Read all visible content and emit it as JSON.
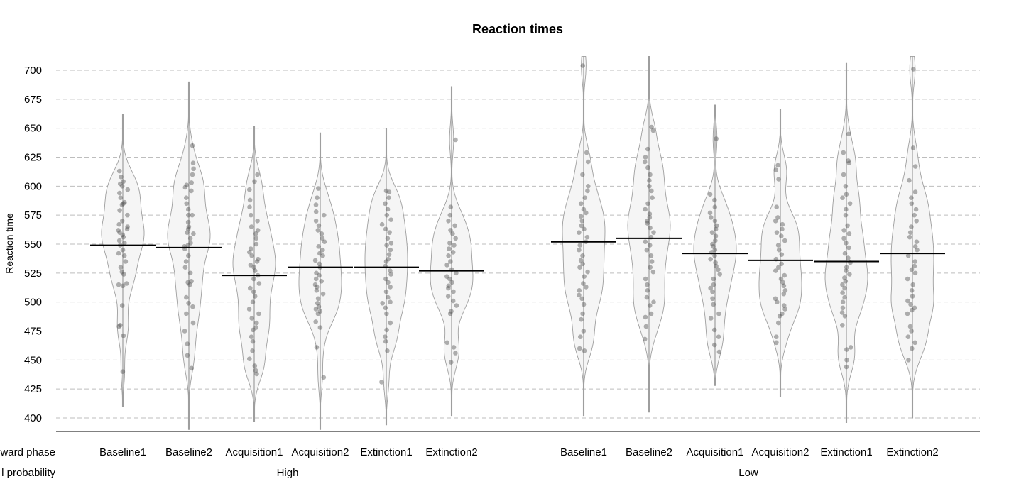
{
  "chart_data": {
    "type": "violin",
    "title": "Reaction times",
    "ylabel": "Reaction time",
    "ylim": [
      390,
      712
    ],
    "y_ticks": [
      400,
      425,
      450,
      475,
      500,
      525,
      550,
      575,
      600,
      625,
      650,
      675,
      700
    ],
    "grid": true,
    "row_labels": {
      "phase": "ward phase",
      "probability": "l probability"
    },
    "groups": [
      {
        "name": "High",
        "categories": [
          {
            "label": "Baseline1",
            "median": 549,
            "range": [
              410,
              662
            ],
            "points": [
              440,
              471,
              479,
              480,
              497,
              514,
              515,
              516,
              524,
              526,
              530,
              535,
              540,
              542,
              545,
              549,
              551,
              553,
              556,
              558,
              560,
              562,
              563,
              565,
              567,
              570,
              575,
              579,
              584,
              585,
              586,
              590,
              594,
              597,
              600,
              602,
              604,
              608,
              613
            ]
          },
          {
            "label": "Baseline2",
            "median": 547,
            "range": [
              390,
              690
            ],
            "points": [
              443,
              454,
              464,
              475,
              482,
              490,
              496,
              499,
              504,
              515,
              517,
              518,
              525,
              530,
              535,
              540,
              546,
              548,
              549,
              551,
              555,
              559,
              560,
              563,
              565,
              569,
              575,
              575,
              580,
              585,
              590,
              596,
              599,
              601,
              603,
              610,
              615,
              620,
              635
            ]
          },
          {
            "label": "Acquisition1",
            "median": 523,
            "range": [
              397,
              652
            ],
            "points": [
              438,
              441,
              445,
              451,
              458,
              466,
              470,
              476,
              478,
              482,
              486,
              490,
              494,
              500,
              505,
              509,
              512,
              516,
              520,
              523,
              527,
              530,
              532,
              535,
              537,
              540,
              543,
              546,
              550,
              555,
              559,
              562,
              565,
              570,
              575,
              582,
              588,
              597,
              604,
              610
            ]
          },
          {
            "label": "Acquisition2",
            "median": 530,
            "range": [
              388,
              646
            ],
            "points": [
              435,
              461,
              478,
              483,
              490,
              492,
              494,
              496,
              499,
              503,
              507,
              510,
              513,
              515,
              518,
              520,
              523,
              525,
              530,
              533,
              536,
              540,
              542,
              545,
              548,
              552,
              555,
              559,
              562,
              566,
              570,
              575,
              578,
              584,
              590,
              598
            ]
          },
          {
            "label": "Extinction1",
            "median": 530,
            "range": [
              394,
              650
            ],
            "points": [
              431,
              458,
              466,
              470,
              476,
              482,
              490,
              495,
              499,
              500,
              504,
              509,
              513,
              517,
              520,
              524,
              527,
              531,
              535,
              537,
              541,
              545,
              549,
              551,
              555,
              560,
              563,
              567,
              571,
              575,
              580,
              585,
              590,
              595,
              596
            ]
          },
          {
            "label": "Extinction2",
            "median": 527,
            "range": [
              402,
              686
            ],
            "points": [
              448,
              456,
              461,
              465,
              490,
              492,
              497,
              501,
              505,
              509,
              512,
              514,
              517,
              520,
              522,
              525,
              528,
              532,
              535,
              540,
              543,
              546,
              549,
              551,
              555,
              559,
              562,
              566,
              570,
              575,
              582,
              640
            ]
          }
        ]
      },
      {
        "name": "Low",
        "categories": [
          {
            "label": "Baseline1",
            "median": 552,
            "range": [
              402,
              712
            ],
            "points": [
              458,
              460,
              470,
              475,
              485,
              490,
              498,
              503,
              506,
              510,
              513,
              516,
              522,
              526,
              530,
              533,
              536,
              540,
              545,
              549,
              552,
              556,
              560,
              563,
              566,
              570,
              574,
              577,
              580,
              585,
              590,
              596,
              600,
              610,
              621,
              629,
              704
            ]
          },
          {
            "label": "Baseline2",
            "median": 555,
            "range": [
              405,
              712
            ],
            "points": [
              468,
              479,
              487,
              490,
              497,
              500,
              504,
              510,
              515,
              520,
              526,
              530,
              535,
              540,
              545,
              549,
              552,
              556,
              560,
              564,
              568,
              570,
              573,
              576,
              580,
              585,
              590,
              596,
              600,
              605,
              610,
              616,
              621,
              625,
              632,
              648,
              651
            ]
          },
          {
            "label": "Acquisition1",
            "median": 542,
            "range": [
              428,
              670
            ],
            "points": [
              457,
              463,
              470,
              476,
              486,
              490,
              498,
              503,
              509,
              512,
              515,
              520,
              524,
              528,
              531,
              534,
              537,
              540,
              543,
              545,
              548,
              550,
              553,
              557,
              560,
              563,
              566,
              570,
              573,
              577,
              582,
              588,
              593,
              641
            ]
          },
          {
            "label": "Acquisition2",
            "median": 536,
            "range": [
              418,
              666
            ],
            "points": [
              465,
              470,
              482,
              488,
              490,
              494,
              497,
              500,
              503,
              507,
              510,
              514,
              517,
              520,
              523,
              527,
              530,
              533,
              537,
              541,
              545,
              549,
              553,
              557,
              560,
              563,
              567,
              570,
              573,
              582,
              606,
              614,
              618
            ]
          },
          {
            "label": "Extinction1",
            "median": 535,
            "range": [
              396,
              706
            ],
            "points": [
              444,
              450,
              459,
              461,
              480,
              488,
              491,
              495,
              500,
              504,
              508,
              512,
              515,
              518,
              521,
              524,
              527,
              530,
              534,
              538,
              542,
              547,
              551,
              555,
              559,
              562,
              566,
              575,
              580,
              585,
              590,
              593,
              600,
              610,
              620,
              622,
              629,
              645
            ]
          },
          {
            "label": "Extinction2",
            "median": 542,
            "range": [
              400,
              712
            ],
            "points": [
              450,
              460,
              465,
              470,
              475,
              479,
              490,
              493,
              495,
              498,
              501,
              505,
              510,
              515,
              520,
              525,
              528,
              531,
              535,
              540,
              545,
              548,
              552,
              556,
              560,
              565,
              570,
              575,
              580,
              585,
              590,
              595,
              605,
              617,
              633,
              701
            ]
          }
        ]
      }
    ]
  }
}
